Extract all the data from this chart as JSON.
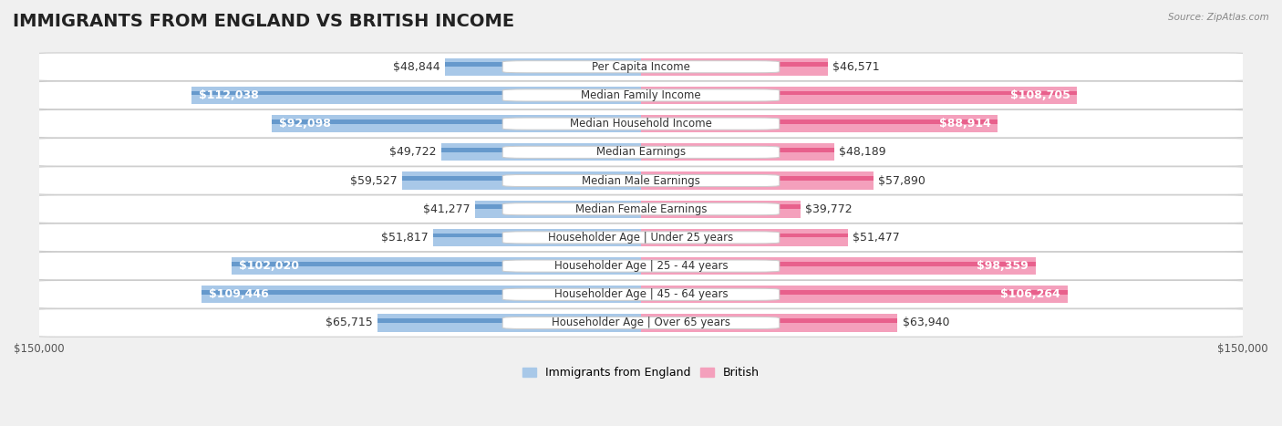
{
  "title": "IMMIGRANTS FROM ENGLAND VS BRITISH INCOME",
  "source": "Source: ZipAtlas.com",
  "categories": [
    "Per Capita Income",
    "Median Family Income",
    "Median Household Income",
    "Median Earnings",
    "Median Male Earnings",
    "Median Female Earnings",
    "Householder Age | Under 25 years",
    "Householder Age | 25 - 44 years",
    "Householder Age | 45 - 64 years",
    "Householder Age | Over 65 years"
  ],
  "england_values": [
    48844,
    112038,
    92098,
    49722,
    59527,
    41277,
    51817,
    102020,
    109446,
    65715
  ],
  "british_values": [
    46571,
    108705,
    88914,
    48189,
    57890,
    39772,
    51477,
    98359,
    106264,
    63940
  ],
  "england_color_light": "#a8c8e8",
  "england_color_dark": "#6699cc",
  "british_color_light": "#f4a0bc",
  "british_color_dark": "#e8608c",
  "england_label": "Immigrants from England",
  "british_label": "British",
  "england_labels": [
    "$48,844",
    "$112,038",
    "$92,098",
    "$49,722",
    "$59,527",
    "$41,277",
    "$51,817",
    "$102,020",
    "$109,446",
    "$65,715"
  ],
  "british_labels": [
    "$46,571",
    "$108,705",
    "$88,914",
    "$48,189",
    "$57,890",
    "$39,772",
    "$51,477",
    "$98,359",
    "$106,264",
    "$63,940"
  ],
  "england_label_inside": [
    false,
    true,
    true,
    false,
    false,
    false,
    false,
    true,
    true,
    false
  ],
  "british_label_inside": [
    false,
    true,
    true,
    false,
    false,
    false,
    false,
    true,
    true,
    false
  ],
  "max_value": 150000,
  "background_color": "#f0f0f0",
  "row_bg_color": "#ffffff",
  "title_fontsize": 14,
  "label_fontsize": 9,
  "cat_fontsize": 8.5,
  "bar_height": 0.62,
  "axis_label": "$150,000"
}
